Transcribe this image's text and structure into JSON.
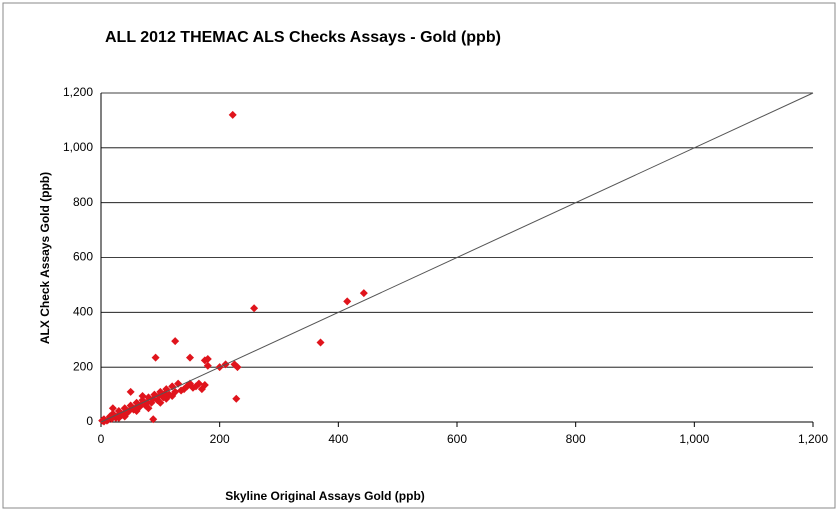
{
  "chart_data": {
    "type": "scatter",
    "title": "ALL 2012 THEMAC ALS Checks Assays  - Gold (ppb)",
    "x_label": "Skyline Original Assays Gold (ppb)",
    "y_label": "ALX Check Assays  Gold (ppb)",
    "xlim": [
      0,
      1200
    ],
    "ylim": [
      0,
      1200
    ],
    "xticks": [
      0,
      200,
      400,
      600,
      800,
      {
        "value": 1000,
        "label": "1,000"
      },
      {
        "value": 1200,
        "label": "1,200"
      }
    ],
    "yticks": [
      0,
      200,
      400,
      600,
      800,
      {
        "value": 1000,
        "label": "1,000"
      },
      {
        "value": 1200,
        "label": "1,200"
      }
    ],
    "grid": true,
    "series": [
      {
        "color": "#e0141c",
        "mode": "markers",
        "x": [
          222,
          258,
          370,
          415,
          443,
          125,
          92,
          150,
          175,
          180,
          180,
          210,
          225,
          230,
          200,
          228,
          88,
          50,
          10,
          5,
          15,
          20,
          25,
          30,
          35,
          40,
          45,
          50,
          55,
          60,
          65,
          70,
          75,
          80,
          85,
          90,
          95,
          100,
          105,
          110,
          115,
          120,
          125,
          130,
          135,
          140,
          145,
          150,
          155,
          160,
          165,
          170,
          175,
          20,
          30,
          40,
          60,
          70,
          80,
          100,
          110,
          120,
          5,
          2,
          12,
          18,
          28,
          38,
          48,
          58,
          68,
          78,
          88,
          98,
          108
        ],
        "values": [
          1120,
          415,
          290,
          440,
          470,
          295,
          235,
          235,
          225,
          230,
          205,
          210,
          210,
          200,
          200,
          85,
          10,
          110,
          5,
          10,
          20,
          30,
          15,
          40,
          25,
          50,
          35,
          60,
          45,
          70,
          55,
          80,
          60,
          90,
          70,
          100,
          80,
          110,
          90,
          120,
          100,
          130,
          110,
          140,
          115,
          120,
          130,
          140,
          125,
          130,
          140,
          120,
          135,
          50,
          15,
          20,
          40,
          95,
          50,
          70,
          85,
          95,
          2,
          5,
          8,
          12,
          22,
          30,
          42,
          50,
          64,
          72,
          84,
          96,
          104
        ]
      },
      {
        "color": "#555555",
        "mode": "line",
        "x": [
          0,
          1200
        ],
        "values": [
          0,
          1200
        ]
      }
    ]
  }
}
